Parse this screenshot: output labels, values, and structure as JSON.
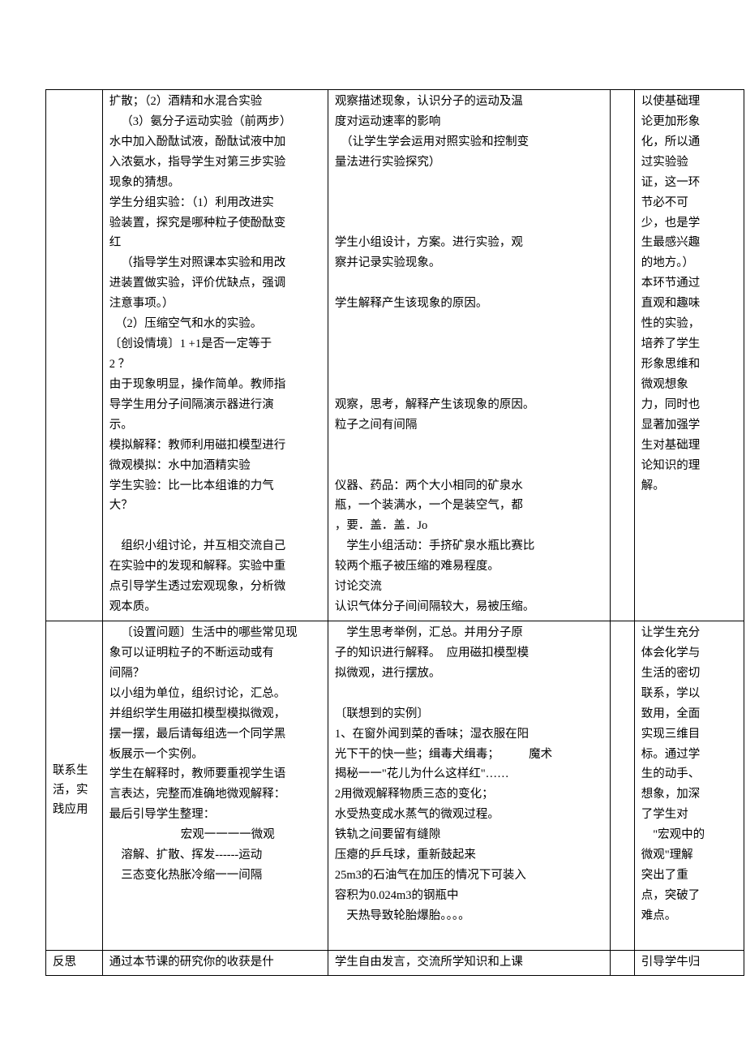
{
  "row1": {
    "col2": [
      {
        "t": "扩散；（2）酒精和水混合实验",
        "cls": ""
      },
      {
        "t": "（3）氨分子运动实验（前两步）",
        "cls": "indent1"
      },
      {
        "t": "水中加入酚酞试液，酚酞试液中加",
        "cls": ""
      },
      {
        "t": "入浓氨水，指导学生对第三步实验",
        "cls": ""
      },
      {
        "t": "现象的猜想。",
        "cls": ""
      },
      {
        "t": "学生分组实验：（1）利用改进实",
        "cls": ""
      },
      {
        "t": "验装置，探究是哪种粒子使酚酞变",
        "cls": ""
      },
      {
        "t": "红",
        "cls": ""
      },
      {
        "t": "（指导学生对照课本实验和用改",
        "cls": "indent1"
      },
      {
        "t": "进装置做实验，评价优缺点，强调",
        "cls": ""
      },
      {
        "t": "注意事项。）",
        "cls": ""
      },
      {
        "t": "　（2）压缩空气和水的实验。",
        "cls": ""
      },
      {
        "t": "〔创设情境〕1 +1是否一定等于",
        "cls": ""
      },
      {
        "t": "2 ？",
        "cls": ""
      },
      {
        "t": "由于现象明显，操作简单。教师指",
        "cls": ""
      },
      {
        "t": "导学生用分子间隔演示器进行演",
        "cls": ""
      },
      {
        "t": "示。",
        "cls": ""
      },
      {
        "t": "模拟解释：教师利用磁扣模型进行",
        "cls": ""
      },
      {
        "t": "微观模拟：水中加酒精实验",
        "cls": ""
      },
      {
        "t": "学生实验：比一比本组谁的力气",
        "cls": ""
      },
      {
        "t": "大？",
        "cls": ""
      },
      {
        "t": " ",
        "cls": ""
      },
      {
        "t": "　组织小组讨论，并互相交流自己",
        "cls": ""
      },
      {
        "t": "在实验中的发现和解释。实验中重",
        "cls": ""
      },
      {
        "t": "点引导学生透过宏观现象，分析微",
        "cls": ""
      },
      {
        "t": "观本质。",
        "cls": ""
      }
    ],
    "col3": [
      {
        "t": "观察描述现象，认识分子的运动及温",
        "cls": ""
      },
      {
        "t": "度对运动速率的影响",
        "cls": ""
      },
      {
        "t": "　（让学生学会运用对照实验和控制变",
        "cls": ""
      },
      {
        "t": "量法进行实验探究）",
        "cls": ""
      },
      {
        "t": " ",
        "cls": ""
      },
      {
        "t": " ",
        "cls": ""
      },
      {
        "t": " ",
        "cls": ""
      },
      {
        "t": "学生小组设计，方案。进行实验，观",
        "cls": ""
      },
      {
        "t": "察并记录实验现象。",
        "cls": ""
      },
      {
        "t": " ",
        "cls": ""
      },
      {
        "t": "学生解释产生该现象的原因。",
        "cls": ""
      },
      {
        "t": " ",
        "cls": ""
      },
      {
        "t": " ",
        "cls": ""
      },
      {
        "t": " ",
        "cls": ""
      },
      {
        "t": " ",
        "cls": ""
      },
      {
        "t": "观察，思考，解释产生该现象的原因。",
        "cls": ""
      },
      {
        "t": "粒子之间有间隔",
        "cls": ""
      },
      {
        "t": " ",
        "cls": ""
      },
      {
        "t": " ",
        "cls": ""
      },
      {
        "t": "仪器、药品：两个大小相同的矿泉水",
        "cls": ""
      },
      {
        "t": "瓶，一个装满水，一个是装空气，都",
        "cls": ""
      },
      {
        "t": "，要．盖．盖．Jo",
        "cls": ""
      },
      {
        "t": "　学生小组活动：手挤矿泉水瓶比赛比",
        "cls": ""
      },
      {
        "t": "较两个瓶子被压缩的难易程度。",
        "cls": ""
      },
      {
        "t": "讨论交流",
        "cls": ""
      },
      {
        "t": "认识气体分子间间隔较大，易被压缩。",
        "cls": ""
      }
    ],
    "col4": [
      {
        "t": "以使基础理",
        "cls": ""
      },
      {
        "t": "论更加形象",
        "cls": ""
      },
      {
        "t": "化，所以通",
        "cls": ""
      },
      {
        "t": "过实验验",
        "cls": ""
      },
      {
        "t": "证，这一环",
        "cls": ""
      },
      {
        "t": "节必不可",
        "cls": ""
      },
      {
        "t": "少，也是学",
        "cls": ""
      },
      {
        "t": "生最感兴趣",
        "cls": ""
      },
      {
        "t": "的地方。）",
        "cls": ""
      },
      {
        "t": "本环节通过",
        "cls": ""
      },
      {
        "t": "直观和趣味",
        "cls": ""
      },
      {
        "t": "性的实验，",
        "cls": ""
      },
      {
        "t": "培养了学生",
        "cls": ""
      },
      {
        "t": "形象思维和",
        "cls": ""
      },
      {
        "t": "微观想象",
        "cls": ""
      },
      {
        "t": "力，同时也",
        "cls": ""
      },
      {
        "t": "显著加强学",
        "cls": ""
      },
      {
        "t": "生对基础理",
        "cls": ""
      },
      {
        "t": "论知识的理",
        "cls": ""
      },
      {
        "t": "解。",
        "cls": ""
      }
    ]
  },
  "row2": {
    "col1": "联系生活，实践应用",
    "col2": [
      {
        "t": "〔设置问题〕生活中的哪些常见现",
        "cls": "indent1"
      },
      {
        "t": "象可以证明粒子的不断运动或有",
        "cls": ""
      },
      {
        "t": "间隔？",
        "cls": ""
      },
      {
        "t": "以小组为单位，组织讨论，汇总。",
        "cls": ""
      },
      {
        "t": "并组织学生用磁扣模型模拟微观，",
        "cls": ""
      },
      {
        "t": "摆一摆，最后请每组选一个同学黑",
        "cls": ""
      },
      {
        "t": "板展示一个实例。",
        "cls": ""
      },
      {
        "t": "学生在解释时，教师要重视学生语",
        "cls": ""
      },
      {
        "t": "言表达，完整而准确地微观解释：",
        "cls": ""
      },
      {
        "t": "最后引导学生整理：",
        "cls": ""
      },
      {
        "t": "宏观一一一一微观",
        "cls": "indent2 center"
      },
      {
        "t": "溶解、扩散、挥发------运动",
        "cls": "indent1"
      },
      {
        "t": "三态变化热胀冷缩一一间隔",
        "cls": "indent1"
      }
    ],
    "col3": [
      {
        "t": "　学生思考举例，汇总。并用分子原",
        "cls": ""
      },
      {
        "t": "子的知识进行解释。　应用磁扣模型模",
        "cls": ""
      },
      {
        "t": "拟微观，进行摆放。",
        "cls": ""
      },
      {
        "t": " ",
        "cls": ""
      },
      {
        "t": "〔联想到的实例〕",
        "cls": ""
      },
      {
        "t": "1、在窗外闻到菜的香味；湿衣服在阳",
        "cls": ""
      },
      {
        "t": "光下干的快一些；缉毒犬缉毒；　　　魔术",
        "cls": ""
      },
      {
        "t": "揭秘一一\"花儿为什么这样红\"……",
        "cls": ""
      },
      {
        "t": "2用微观解释物质三态的变化；",
        "cls": ""
      },
      {
        "t": "水受热变成水蒸气的微观过程。",
        "cls": ""
      },
      {
        "t": "铁轨之间要留有缝隙",
        "cls": ""
      },
      {
        "t": "压瘪的乒乓球，重新鼓起来",
        "cls": ""
      },
      {
        "t": "25m3的石油气在加压的情况下可装入",
        "cls": ""
      },
      {
        "t": "容积为0.024m3的钢瓶中",
        "cls": ""
      },
      {
        "t": "　天热导致轮胎爆胎。。。。",
        "cls": ""
      },
      {
        "t": " ",
        "cls": ""
      }
    ],
    "col4": [
      {
        "t": "让学生充分",
        "cls": ""
      },
      {
        "t": "体会化学与",
        "cls": ""
      },
      {
        "t": "生活的密切",
        "cls": ""
      },
      {
        "t": "联系，学以",
        "cls": ""
      },
      {
        "t": "致用，全面",
        "cls": ""
      },
      {
        "t": "实现三维目",
        "cls": ""
      },
      {
        "t": "标。通过学",
        "cls": ""
      },
      {
        "t": "生的动手、",
        "cls": ""
      },
      {
        "t": "想象，加深",
        "cls": ""
      },
      {
        "t": "了学生对",
        "cls": ""
      },
      {
        "t": "\"宏观中的",
        "cls": "indent1"
      },
      {
        "t": "微观\"理解",
        "cls": ""
      },
      {
        "t": "突出了重",
        "cls": ""
      },
      {
        "t": "点，突破了",
        "cls": ""
      },
      {
        "t": "难点。",
        "cls": ""
      }
    ]
  },
  "row3": {
    "col1": "反思",
    "col2": "通过本节课的研究你的收获是什",
    "col3": "学生自由发言，交流所学知识和上课",
    "col4": "引导学牛归"
  }
}
